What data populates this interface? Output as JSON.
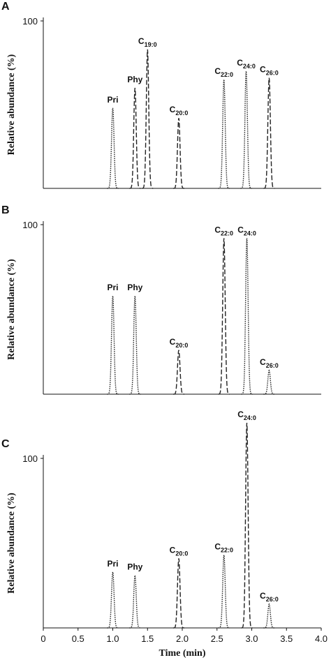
{
  "chart_data": [
    {
      "type": "chromatogram",
      "panel": "A",
      "ylabel": "Relative abundance (%)",
      "xlim": [
        0,
        4
      ],
      "ylim": [
        0,
        100
      ],
      "yticks": [
        100
      ],
      "peaks": [
        {
          "name": "Pri",
          "x": 1.0,
          "height": 48,
          "style": "dotted"
        },
        {
          "name": "Phy",
          "x": 1.32,
          "height": 60,
          "style": "dashed"
        },
        {
          "name": "C",
          "sub": "19:0",
          "x": 1.5,
          "height": 83,
          "style": "dashed"
        },
        {
          "name": "C",
          "sub": "20:0",
          "x": 1.95,
          "height": 42,
          "style": "dashed"
        },
        {
          "name": "C",
          "sub": "22:0",
          "x": 2.6,
          "height": 65,
          "style": "dotted"
        },
        {
          "name": "C",
          "sub": "24:0",
          "x": 2.92,
          "height": 70,
          "style": "dotted"
        },
        {
          "name": "C",
          "sub": "26:0",
          "x": 3.25,
          "height": 66,
          "style": "dashed"
        }
      ]
    },
    {
      "type": "chromatogram",
      "panel": "B",
      "ylabel": "Relative abundance (%)",
      "xlim": [
        0,
        4
      ],
      "ylim": [
        0,
        100
      ],
      "yticks": [
        100
      ],
      "peaks": [
        {
          "name": "Pri",
          "x": 1.0,
          "height": 58,
          "style": "dotted"
        },
        {
          "name": "Phy",
          "x": 1.32,
          "height": 58,
          "style": "dotted"
        },
        {
          "name": "C",
          "sub": "20:0",
          "x": 1.95,
          "height": 26,
          "style": "dashed"
        },
        {
          "name": "C",
          "sub": "22:0",
          "x": 2.6,
          "height": 92,
          "style": "dashed"
        },
        {
          "name": "C",
          "sub": "24:0",
          "x": 2.93,
          "height": 92,
          "style": "dotted"
        },
        {
          "name": "C",
          "sub": "26:0",
          "x": 3.25,
          "height": 14,
          "style": "dotted"
        }
      ]
    },
    {
      "type": "chromatogram",
      "panel": "C",
      "ylabel": "Relative abundance (%)",
      "xlabel": "Time (min)",
      "xlim": [
        0,
        4
      ],
      "ylim": [
        0,
        100
      ],
      "yticks": [
        100
      ],
      "xticks": [
        0,
        {
          "value": 0.5,
          "label": "0.5"
        },
        {
          "value": 1,
          "label": "1.0"
        },
        {
          "value": 1.5,
          "label": "1.5"
        },
        {
          "value": 2,
          "label": "2.0"
        },
        {
          "value": 2.5,
          "label": "2.5"
        },
        {
          "value": 3,
          "label": "3.0"
        },
        {
          "value": 3.5,
          "label": "3.5"
        },
        {
          "value": 4,
          "label": "4.0"
        }
      ],
      "peaks": [
        {
          "name": "Pri",
          "x": 1.0,
          "height": 33,
          "style": "dotted"
        },
        {
          "name": "Phy",
          "x": 1.32,
          "height": 31,
          "style": "dotted"
        },
        {
          "name": "C",
          "sub": "20:0",
          "x": 1.95,
          "height": 41,
          "style": "dashed"
        },
        {
          "name": "C",
          "sub": "22:0",
          "x": 2.6,
          "height": 43,
          "style": "dotted"
        },
        {
          "name": "C",
          "sub": "24:0",
          "x": 2.93,
          "height": 121,
          "style": "dashed"
        },
        {
          "name": "C",
          "sub": "26:0",
          "x": 3.25,
          "height": 14,
          "style": "dotted"
        }
      ]
    }
  ]
}
